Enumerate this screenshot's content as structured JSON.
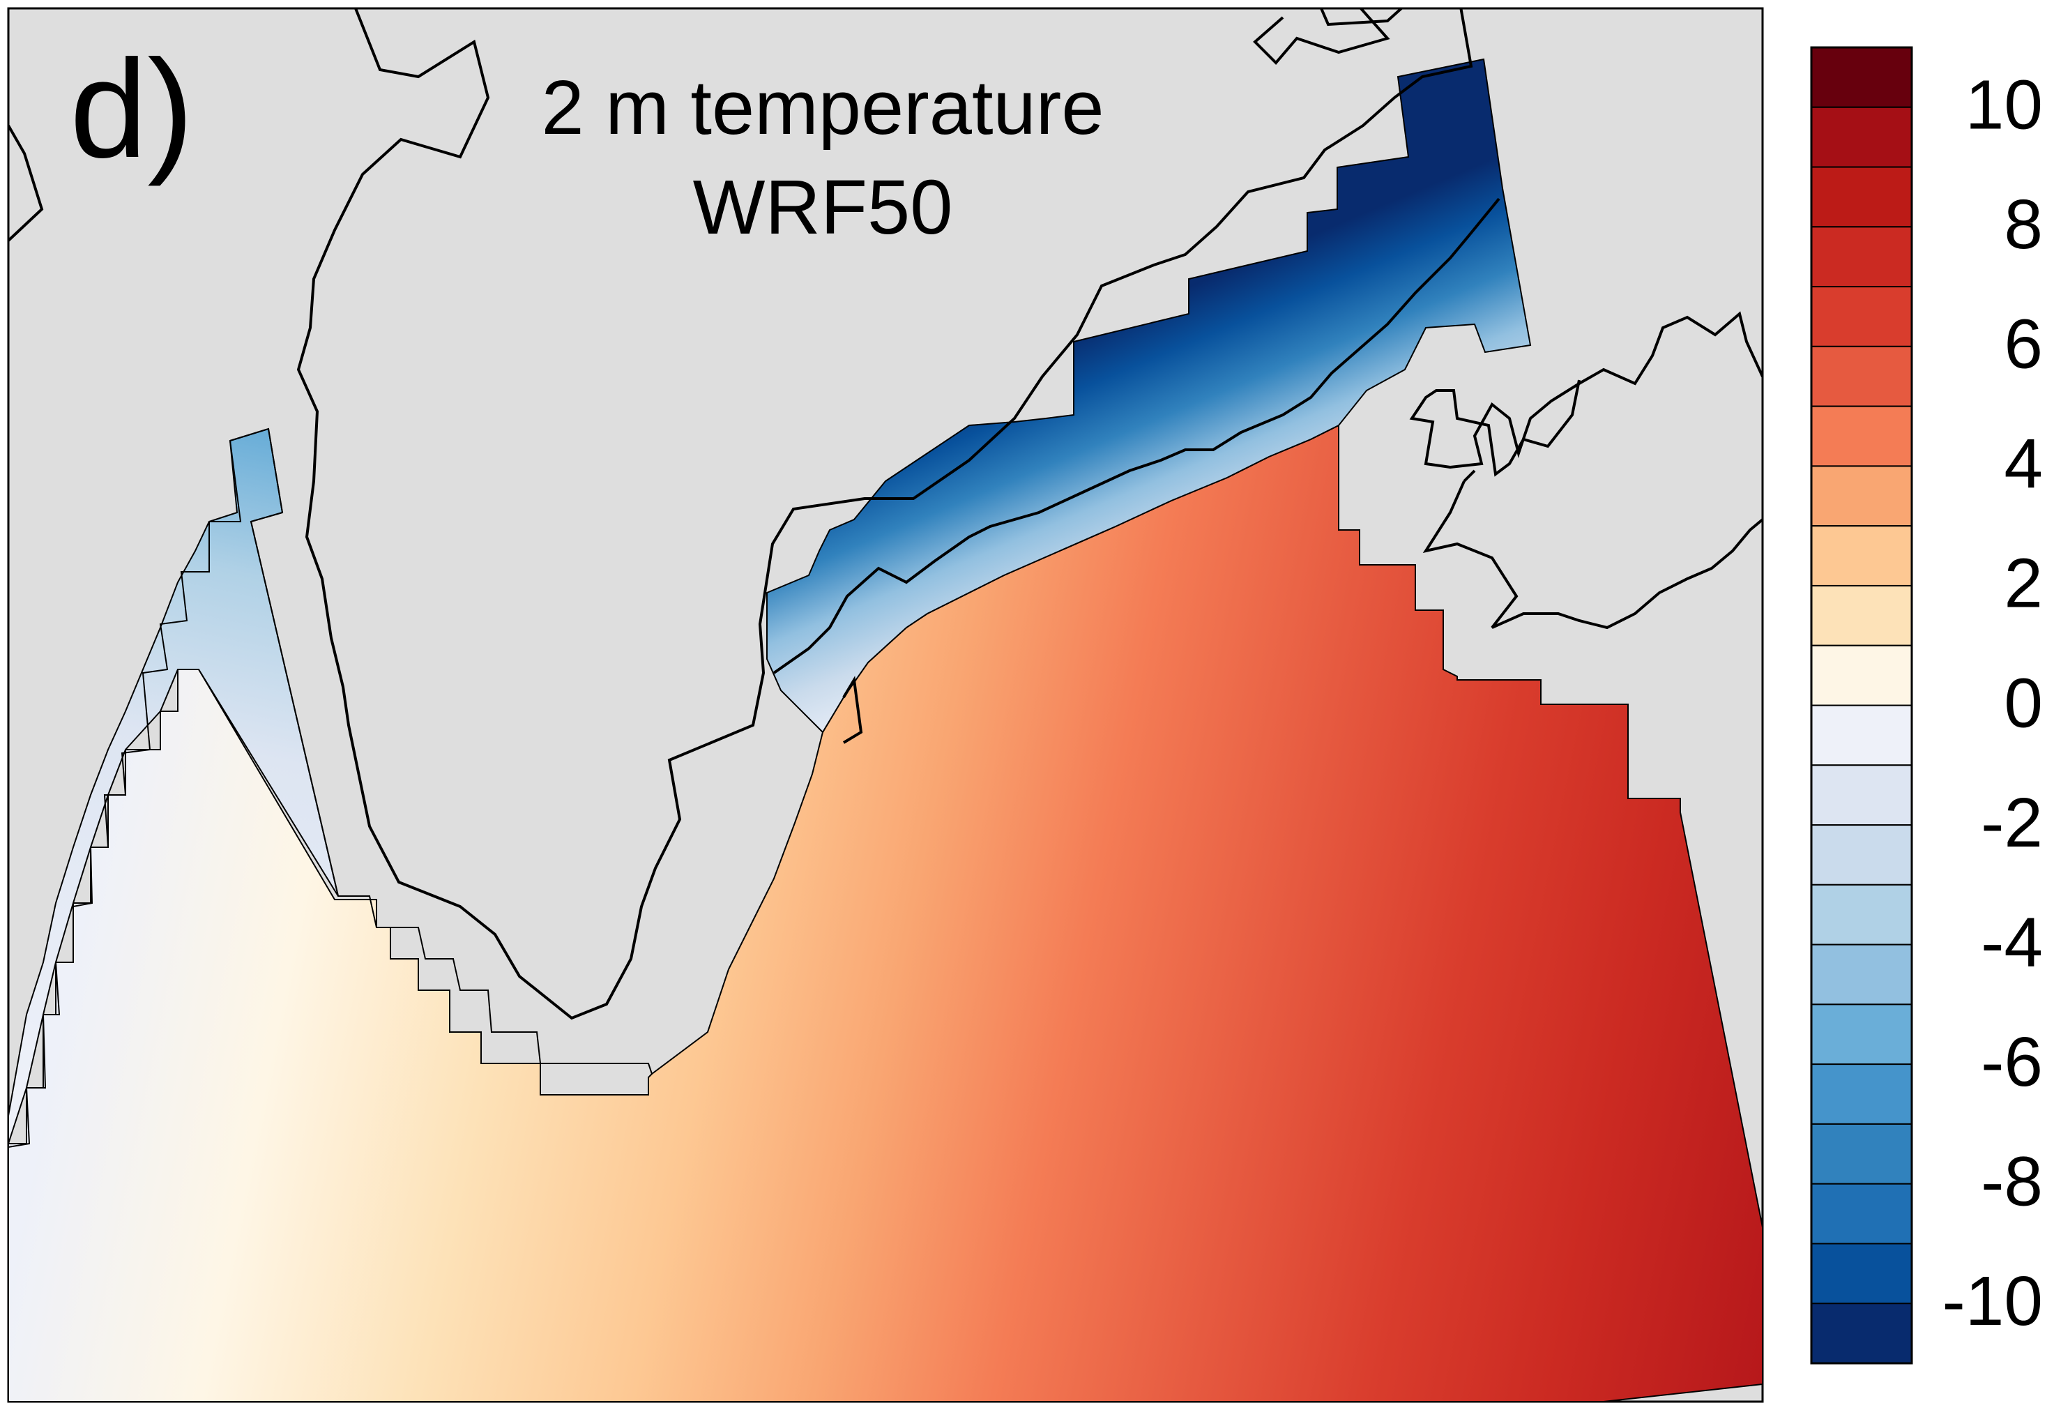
{
  "panel": {
    "label": "d)",
    "title_line1": "2 m temperature",
    "title_line2": "WRF50"
  },
  "colors": {
    "land": "#dedede",
    "border": "#000000",
    "background": "#ffffff"
  },
  "colorbar": {
    "tick_labels": [
      "10",
      "8",
      "6",
      "4",
      "2",
      "0",
      "-2",
      "-4",
      "-6",
      "-8",
      "-10"
    ],
    "bins_top_to_bottom": [
      "#67000d",
      "#a50f15",
      "#bc1b17",
      "#cb2a22",
      "#d93d2d",
      "#e65a40",
      "#f47c55",
      "#f9a672",
      "#fdc893",
      "#fde2b8",
      "#fef6e6",
      "#eef1f9",
      "#dde5f2",
      "#cadbec",
      "#b0d1e6",
      "#92c0e0",
      "#6aaed8",
      "#4594cb",
      "#3182bd",
      "#2070b4",
      "#08519c",
      "#082b6e"
    ]
  }
}
